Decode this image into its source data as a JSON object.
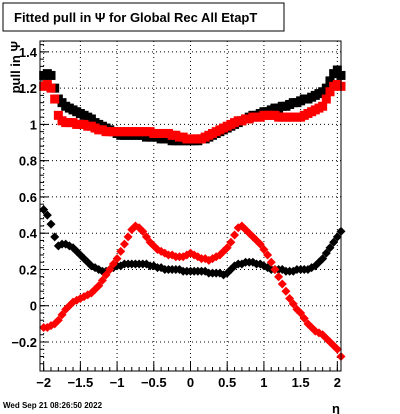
{
  "chart_data": {
    "type": "scatter",
    "title": "Fitted pull in  Ψ  for Global Rec All EtapT",
    "xlabel": "η",
    "ylabel": "pull in  Ψ",
    "xlim": [
      -2.05,
      2.05
    ],
    "ylim": [
      -0.36,
      1.46
    ],
    "x_ticks": [
      -2,
      -1.5,
      -1,
      -0.5,
      0,
      0.5,
      1,
      1.5,
      2
    ],
    "x_tick_labels": [
      "−2",
      "−1.5",
      "−1",
      "−0.5",
      "0",
      "0.5",
      "1",
      "1.5",
      "2"
    ],
    "y_ticks": [
      -0.2,
      0,
      0.2,
      0.4,
      0.6,
      0.8,
      1,
      1.2,
      1.4
    ],
    "y_tick_labels": [
      "−0.2",
      "0",
      "0.2",
      "0.4",
      "0.6",
      "0.8",
      "1",
      "1.2",
      "1.4"
    ],
    "grid": true,
    "footer": "Wed Sep 21 08:26:50 2022",
    "series": [
      {
        "marker": "square",
        "color": "#000000",
        "x": [
          -2.0,
          -1.95,
          -1.9,
          -1.85,
          -1.8,
          -1.75,
          -1.7,
          -1.65,
          -1.6,
          -1.55,
          -1.5,
          -1.45,
          -1.4,
          -1.35,
          -1.3,
          -1.25,
          -1.2,
          -1.15,
          -1.1,
          -1.05,
          -1.0,
          -0.95,
          -0.9,
          -0.85,
          -0.8,
          -0.75,
          -0.7,
          -0.65,
          -0.6,
          -0.55,
          -0.5,
          -0.45,
          -0.4,
          -0.35,
          -0.3,
          -0.25,
          -0.2,
          -0.15,
          -0.1,
          -0.05,
          0.0,
          0.05,
          0.1,
          0.15,
          0.2,
          0.25,
          0.3,
          0.35,
          0.4,
          0.45,
          0.5,
          0.55,
          0.6,
          0.65,
          0.7,
          0.75,
          0.8,
          0.85,
          0.9,
          0.95,
          1.0,
          1.05,
          1.1,
          1.15,
          1.2,
          1.25,
          1.3,
          1.35,
          1.4,
          1.45,
          1.5,
          1.55,
          1.6,
          1.65,
          1.7,
          1.75,
          1.8,
          1.85,
          1.9,
          1.95,
          2.0,
          2.05
        ],
        "y": [
          1.27,
          1.28,
          1.27,
          1.2,
          1.14,
          1.12,
          1.1,
          1.09,
          1.08,
          1.07,
          1.06,
          1.05,
          1.04,
          1.03,
          1.01,
          1.0,
          0.99,
          0.98,
          0.97,
          0.96,
          0.95,
          0.94,
          0.94,
          0.94,
          0.94,
          0.94,
          0.94,
          0.94,
          0.93,
          0.93,
          0.93,
          0.93,
          0.92,
          0.92,
          0.92,
          0.91,
          0.91,
          0.91,
          0.91,
          0.91,
          0.91,
          0.91,
          0.91,
          0.92,
          0.92,
          0.93,
          0.94,
          0.95,
          0.96,
          0.97,
          0.98,
          0.99,
          1.0,
          1.01,
          1.02,
          1.03,
          1.04,
          1.05,
          1.05,
          1.06,
          1.07,
          1.07,
          1.08,
          1.09,
          1.09,
          1.1,
          1.1,
          1.11,
          1.12,
          1.12,
          1.13,
          1.14,
          1.14,
          1.15,
          1.16,
          1.17,
          1.18,
          1.2,
          1.24,
          1.28,
          1.3,
          1.27
        ]
      },
      {
        "marker": "square",
        "color": "#ff0000",
        "x": [
          -2.0,
          -1.95,
          -1.9,
          -1.85,
          -1.8,
          -1.75,
          -1.7,
          -1.65,
          -1.6,
          -1.55,
          -1.5,
          -1.45,
          -1.4,
          -1.35,
          -1.3,
          -1.25,
          -1.2,
          -1.15,
          -1.1,
          -1.05,
          -1.0,
          -0.95,
          -0.9,
          -0.85,
          -0.8,
          -0.75,
          -0.7,
          -0.65,
          -0.6,
          -0.55,
          -0.5,
          -0.45,
          -0.4,
          -0.35,
          -0.3,
          -0.25,
          -0.2,
          -0.15,
          -0.1,
          -0.05,
          0.0,
          0.05,
          0.1,
          0.15,
          0.2,
          0.25,
          0.3,
          0.35,
          0.4,
          0.45,
          0.5,
          0.55,
          0.6,
          0.65,
          0.7,
          0.75,
          0.8,
          0.85,
          0.9,
          0.95,
          1.0,
          1.05,
          1.1,
          1.15,
          1.2,
          1.25,
          1.3,
          1.35,
          1.4,
          1.45,
          1.5,
          1.55,
          1.6,
          1.65,
          1.7,
          1.75,
          1.8,
          1.85,
          1.9,
          1.95,
          2.0,
          2.05
        ],
        "y": [
          1.21,
          1.22,
          1.2,
          1.14,
          1.05,
          1.02,
          1.01,
          1.01,
          1.01,
          1.0,
          1.0,
          1.0,
          0.99,
          0.99,
          0.98,
          0.97,
          0.97,
          0.96,
          0.96,
          0.96,
          0.96,
          0.96,
          0.96,
          0.96,
          0.96,
          0.96,
          0.96,
          0.96,
          0.96,
          0.96,
          0.95,
          0.95,
          0.95,
          0.95,
          0.95,
          0.94,
          0.94,
          0.93,
          0.93,
          0.92,
          0.92,
          0.92,
          0.92,
          0.92,
          0.93,
          0.94,
          0.95,
          0.96,
          0.97,
          0.98,
          0.99,
          1.0,
          1.01,
          1.02,
          1.02,
          1.03,
          1.03,
          1.04,
          1.04,
          1.04,
          1.05,
          1.05,
          1.05,
          1.05,
          1.04,
          1.04,
          1.04,
          1.04,
          1.04,
          1.04,
          1.04,
          1.05,
          1.06,
          1.07,
          1.08,
          1.09,
          1.1,
          1.14,
          1.18,
          1.21,
          1.22,
          1.21
        ]
      },
      {
        "marker": "diamond",
        "color": "#000000",
        "x": [
          -2.0,
          -1.95,
          -1.9,
          -1.85,
          -1.8,
          -1.75,
          -1.7,
          -1.65,
          -1.6,
          -1.55,
          -1.5,
          -1.45,
          -1.4,
          -1.35,
          -1.3,
          -1.25,
          -1.2,
          -1.15,
          -1.1,
          -1.05,
          -1.0,
          -0.95,
          -0.9,
          -0.85,
          -0.8,
          -0.75,
          -0.7,
          -0.65,
          -0.6,
          -0.55,
          -0.5,
          -0.45,
          -0.4,
          -0.35,
          -0.3,
          -0.25,
          -0.2,
          -0.15,
          -0.1,
          -0.05,
          0.0,
          0.05,
          0.1,
          0.15,
          0.2,
          0.25,
          0.3,
          0.35,
          0.4,
          0.45,
          0.5,
          0.55,
          0.6,
          0.65,
          0.7,
          0.75,
          0.8,
          0.85,
          0.9,
          0.95,
          1.0,
          1.05,
          1.1,
          1.15,
          1.2,
          1.25,
          1.3,
          1.35,
          1.4,
          1.45,
          1.5,
          1.55,
          1.6,
          1.65,
          1.7,
          1.75,
          1.8,
          1.85,
          1.9,
          1.95,
          2.0,
          2.05
        ],
        "y": [
          0.53,
          0.5,
          0.45,
          0.38,
          0.33,
          0.34,
          0.34,
          0.33,
          0.32,
          0.3,
          0.28,
          0.26,
          0.24,
          0.22,
          0.21,
          0.2,
          0.19,
          0.19,
          0.2,
          0.21,
          0.22,
          0.22,
          0.23,
          0.23,
          0.23,
          0.23,
          0.23,
          0.23,
          0.23,
          0.22,
          0.22,
          0.21,
          0.21,
          0.2,
          0.2,
          0.2,
          0.2,
          0.2,
          0.19,
          0.19,
          0.19,
          0.19,
          0.19,
          0.19,
          0.19,
          0.18,
          0.18,
          0.18,
          0.18,
          0.17,
          0.18,
          0.2,
          0.22,
          0.23,
          0.23,
          0.24,
          0.24,
          0.24,
          0.23,
          0.23,
          0.22,
          0.21,
          0.2,
          0.2,
          0.2,
          0.2,
          0.19,
          0.19,
          0.19,
          0.2,
          0.2,
          0.2,
          0.2,
          0.21,
          0.22,
          0.24,
          0.26,
          0.29,
          0.32,
          0.35,
          0.38,
          0.41
        ]
      },
      {
        "marker": "diamond",
        "color": "#ff0000",
        "x": [
          -2.0,
          -1.95,
          -1.9,
          -1.85,
          -1.8,
          -1.75,
          -1.7,
          -1.65,
          -1.6,
          -1.55,
          -1.5,
          -1.45,
          -1.4,
          -1.35,
          -1.3,
          -1.25,
          -1.2,
          -1.15,
          -1.1,
          -1.05,
          -1.0,
          -0.95,
          -0.9,
          -0.85,
          -0.8,
          -0.75,
          -0.7,
          -0.65,
          -0.6,
          -0.55,
          -0.5,
          -0.45,
          -0.4,
          -0.35,
          -0.3,
          -0.25,
          -0.2,
          -0.15,
          -0.1,
          -0.05,
          0.0,
          0.05,
          0.1,
          0.15,
          0.2,
          0.25,
          0.3,
          0.35,
          0.4,
          0.45,
          0.5,
          0.55,
          0.6,
          0.65,
          0.7,
          0.75,
          0.8,
          0.85,
          0.9,
          0.95,
          1.0,
          1.05,
          1.1,
          1.15,
          1.2,
          1.25,
          1.3,
          1.35,
          1.4,
          1.45,
          1.5,
          1.55,
          1.6,
          1.65,
          1.7,
          1.75,
          1.8,
          1.85,
          1.9,
          1.95,
          2.0,
          2.05
        ],
        "y": [
          -0.12,
          -0.12,
          -0.11,
          -0.1,
          -0.08,
          -0.05,
          -0.02,
          0.0,
          0.02,
          0.03,
          0.04,
          0.05,
          0.06,
          0.07,
          0.09,
          0.11,
          0.14,
          0.17,
          0.2,
          0.23,
          0.26,
          0.3,
          0.34,
          0.38,
          0.42,
          0.44,
          0.43,
          0.41,
          0.38,
          0.35,
          0.33,
          0.31,
          0.3,
          0.29,
          0.28,
          0.28,
          0.27,
          0.27,
          0.27,
          0.28,
          0.29,
          0.28,
          0.27,
          0.26,
          0.26,
          0.25,
          0.26,
          0.27,
          0.28,
          0.3,
          0.32,
          0.35,
          0.39,
          0.43,
          0.44,
          0.42,
          0.4,
          0.38,
          0.36,
          0.34,
          0.31,
          0.28,
          0.24,
          0.2,
          0.16,
          0.12,
          0.08,
          0.04,
          0.01,
          -0.02,
          -0.04,
          -0.07,
          -0.1,
          -0.12,
          -0.14,
          -0.15,
          -0.16,
          -0.18,
          -0.2,
          -0.22,
          -0.24,
          -0.28
        ]
      }
    ]
  }
}
